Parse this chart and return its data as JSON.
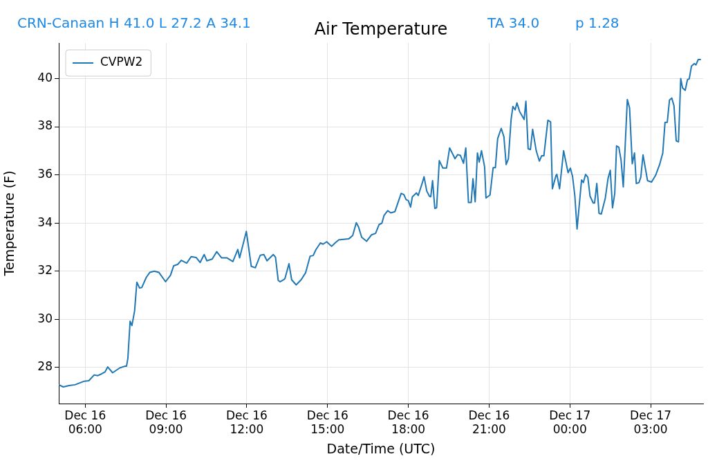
{
  "chart_data": {
    "type": "line",
    "title": "Air Temperature",
    "xlabel": "Date/Time (UTC)",
    "ylabel": "Temperature (F)",
    "annotations": [
      "CRN-Canaan H 41.0 L 27.2 A 34.1",
      "TA 34.0",
      "p 1.28"
    ],
    "xlim": [
      "--12-16T05:01",
      "--12-17T04:57"
    ],
    "xticks": [
      {
        "value": "--12-16T06:00",
        "label": "Dec 16\n06:00"
      },
      {
        "value": "--12-16T09:00",
        "label": "Dec 16\n09:00"
      },
      {
        "value": "--12-16T12:00",
        "label": "Dec 16\n12:00"
      },
      {
        "value": "--12-16T15:00",
        "label": "Dec 16\n15:00"
      },
      {
        "value": "--12-16T18:00",
        "label": "Dec 16\n18:00"
      },
      {
        "value": "--12-16T21:00",
        "label": "Dec 16\n21:00"
      },
      {
        "value": "--12-17T00:00",
        "label": "Dec 17\n00:00"
      },
      {
        "value": "--12-17T03:00",
        "label": "Dec 17\n03:00"
      }
    ],
    "ylim": [
      26.5,
      41.48
    ],
    "yticks": [
      28,
      30,
      32,
      34,
      36,
      38,
      40
    ],
    "grid": true,
    "legend": "top left",
    "marker": "none",
    "line_style": "solid",
    "series": [
      {
        "name": "CVPW2",
        "color": "#1f77b4",
        "x": [
          "--12-16T05:01",
          "--12-16T05:11",
          "--12-16T05:24",
          "--12-16T05:37",
          "--12-16T05:44",
          "--12-16T05:58",
          "--12-16T06:08",
          "--12-16T06:20",
          "--12-16T06:28",
          "--12-16T06:36",
          "--12-16T06:44",
          "--12-16T06:50",
          "--12-16T07:01",
          "--12-16T07:17",
          "--12-16T07:28",
          "--12-16T07:32",
          "--12-16T07:35",
          "--12-16T07:40",
          "--12-16T07:44",
          "--12-16T07:50",
          "--12-16T07:55",
          "--12-16T08:01",
          "--12-16T08:06",
          "--12-16T08:16",
          "--12-16T08:24",
          "--12-16T08:34",
          "--12-16T08:44",
          "--12-16T08:59",
          "--12-16T09:10",
          "--12-16T09:17",
          "--12-16T09:26",
          "--12-16T09:34",
          "--12-16T09:46",
          "--12-16T09:56",
          "--12-16T10:07",
          "--12-16T10:16",
          "--12-16T10:25",
          "--12-16T10:31",
          "--12-16T10:43",
          "--12-16T10:53",
          "--12-16T11:04",
          "--12-16T11:16",
          "--12-16T11:29",
          "--12-16T11:40",
          "--12-16T11:44",
          "--12-16T11:59",
          "--12-16T12:10",
          "--12-16T12:19",
          "--12-16T12:30",
          "--12-16T12:38",
          "--12-16T12:45",
          "--12-16T12:59",
          "--12-16T13:04",
          "--12-16T13:10",
          "--12-16T13:14",
          "--12-16T13:22",
          "--12-16T13:25",
          "--12-16T13:34",
          "--12-16T13:40",
          "--12-16T13:50",
          "--12-16T14:01",
          "--12-16T14:11",
          "--12-16T14:21",
          "--12-16T14:28",
          "--12-16T14:34",
          "--12-16T14:44",
          "--12-16T14:50",
          "--12-16T14:58",
          "--12-16T15:09",
          "--12-16T15:18",
          "--12-16T15:25",
          "--12-16T15:47",
          "--12-16T15:56",
          "--12-16T16:04",
          "--12-16T16:09",
          "--12-16T16:16",
          "--12-16T16:27",
          "--12-16T16:38",
          "--12-16T16:47",
          "--12-16T16:55",
          "--12-16T17:01",
          "--12-16T17:06",
          "--12-16T17:14",
          "--12-16T17:21",
          "--12-16T17:30",
          "--12-16T17:37",
          "--12-16T17:44",
          "--12-16T17:50",
          "--12-16T17:55",
          "--12-16T18:00",
          "--12-16T18:05",
          "--12-16T18:09",
          "--12-16T18:18",
          "--12-16T18:22",
          "--12-16T18:31",
          "--12-16T18:35",
          "--12-16T18:41",
          "--12-16T18:47",
          "--12-16T18:50",
          "--12-16T18:54",
          "--12-16T18:59",
          "--12-16T19:03",
          "--12-16T19:09",
          "--12-16T19:17",
          "--12-16T19:25",
          "--12-16T19:32",
          "--12-16T19:44",
          "--12-16T19:50",
          "--12-16T19:56",
          "--12-16T20:03",
          "--12-16T20:08",
          "--12-16T20:14",
          "--12-16T20:20",
          "--12-16T20:24",
          "--12-16T20:29",
          "--12-16T20:34",
          "--12-16T20:38",
          "--12-16T20:43",
          "--12-16T20:50",
          "--12-16T20:53",
          "--12-16T21:02",
          "--12-16T21:09",
          "--12-16T21:14",
          "--12-16T21:19",
          "--12-16T21:27",
          "--12-16T21:33",
          "--12-16T21:38",
          "--12-16T21:43",
          "--12-16T21:49",
          "--12-16T21:53",
          "--12-16T21:58",
          "--12-16T22:02",
          "--12-16T22:08",
          "--12-16T22:18",
          "--12-16T22:22",
          "--12-16T22:27",
          "--12-16T22:32",
          "--12-16T22:37",
          "--12-16T22:45",
          "--12-16T22:52",
          "--12-16T22:57",
          "--12-16T23:02",
          "--12-16T23:11",
          "--12-16T23:17",
          "--12-16T23:21",
          "--12-16T23:29",
          "--12-16T23:31",
          "--12-16T23:37",
          "--12-16T23:46",
          "--12-16T23:56",
          "--12-17T00:01",
          "--12-17T00:06",
          "--12-17T00:11",
          "--12-17T00:16",
          "--12-17T00:26",
          "--12-17T00:30",
          "--12-17T00:35",
          "--12-17T00:40",
          "--12-17T00:45",
          "--12-17T00:52",
          "--12-17T00:55",
          "--12-17T01:00",
          "--12-17T01:05",
          "--12-17T01:10",
          "--12-17T01:19",
          "--12-17T01:25",
          "--12-17T01:30",
          "--12-17T01:35",
          "--12-17T01:40",
          "--12-17T01:44",
          "--12-17T01:49",
          "--12-17T01:54",
          "--12-17T01:59",
          "--12-17T02:08",
          "--12-17T02:13",
          "--12-17T02:19",
          "--12-17T02:24",
          "--12-17T02:28",
          "--12-17T02:34",
          "--12-17T02:38",
          "--12-17T02:43",
          "--12-17T02:53",
          "--12-17T03:02",
          "--12-17T03:11",
          "--12-17T03:20",
          "--12-17T03:27",
          "--12-17T03:32",
          "--12-17T03:37",
          "--12-17T03:42",
          "--12-17T03:47",
          "--12-17T03:52",
          "--12-17T03:57",
          "--12-17T04:02",
          "--12-17T04:07",
          "--12-17T04:11",
          "--12-17T04:17",
          "--12-17T04:22",
          "--12-17T04:26",
          "--12-17T04:31",
          "--12-17T04:37",
          "--12-17T04:41",
          "--12-17T04:46",
          "--12-17T04:52"
        ],
        "values": [
          27.28,
          27.19,
          27.25,
          27.28,
          27.33,
          27.43,
          27.45,
          27.69,
          27.66,
          27.73,
          27.81,
          28.02,
          27.78,
          27.98,
          28.05,
          28.05,
          28.38,
          29.92,
          29.74,
          30.35,
          31.54,
          31.3,
          31.32,
          31.74,
          31.95,
          32.0,
          31.95,
          31.56,
          31.83,
          32.22,
          32.28,
          32.45,
          32.33,
          32.6,
          32.57,
          32.36,
          32.69,
          32.43,
          32.5,
          32.81,
          32.55,
          32.55,
          32.4,
          32.9,
          32.55,
          33.65,
          32.2,
          32.14,
          32.66,
          32.69,
          32.43,
          32.69,
          32.58,
          31.62,
          31.56,
          31.64,
          31.69,
          32.31,
          31.64,
          31.43,
          31.64,
          31.93,
          32.62,
          32.65,
          32.89,
          33.17,
          33.12,
          33.22,
          33.03,
          33.19,
          33.3,
          33.34,
          33.48,
          34.01,
          33.84,
          33.41,
          33.24,
          33.51,
          33.57,
          33.94,
          33.99,
          34.32,
          34.51,
          34.42,
          34.47,
          34.85,
          35.23,
          35.18,
          34.97,
          34.93,
          34.66,
          35.09,
          35.25,
          35.14,
          35.66,
          35.92,
          35.33,
          35.11,
          35.09,
          35.76,
          34.61,
          34.63,
          36.59,
          36.28,
          36.28,
          37.12,
          36.67,
          36.84,
          36.81,
          36.48,
          37.12,
          34.85,
          34.85,
          35.84,
          34.88,
          36.91,
          36.53,
          37.0,
          36.33,
          35.04,
          35.16,
          36.3,
          36.3,
          37.5,
          37.93,
          37.58,
          36.43,
          36.67,
          38.3,
          38.84,
          38.7,
          38.99,
          38.63,
          38.3,
          39.06,
          37.08,
          37.05,
          37.89,
          37.0,
          36.57,
          36.79,
          36.79,
          38.27,
          38.2,
          35.42,
          35.97,
          36.02,
          35.42,
          37.0,
          36.09,
          36.28,
          35.93,
          35.14,
          33.75,
          35.79,
          35.68,
          36.02,
          35.9,
          35.11,
          34.83,
          34.83,
          35.64,
          34.4,
          34.37,
          35.04,
          35.85,
          36.19,
          34.63,
          35.23,
          37.2,
          37.15,
          36.62,
          35.5,
          39.13,
          38.78,
          36.46,
          36.91,
          35.64,
          35.68,
          35.9,
          36.83,
          35.76,
          35.7,
          35.98,
          36.43,
          36.91,
          38.18,
          38.18,
          39.11,
          39.19,
          38.87,
          37.41,
          37.37,
          40.0,
          39.61,
          39.51,
          39.95,
          39.99,
          40.52,
          40.62,
          40.57,
          40.79,
          40.79
        ]
      }
    ]
  }
}
